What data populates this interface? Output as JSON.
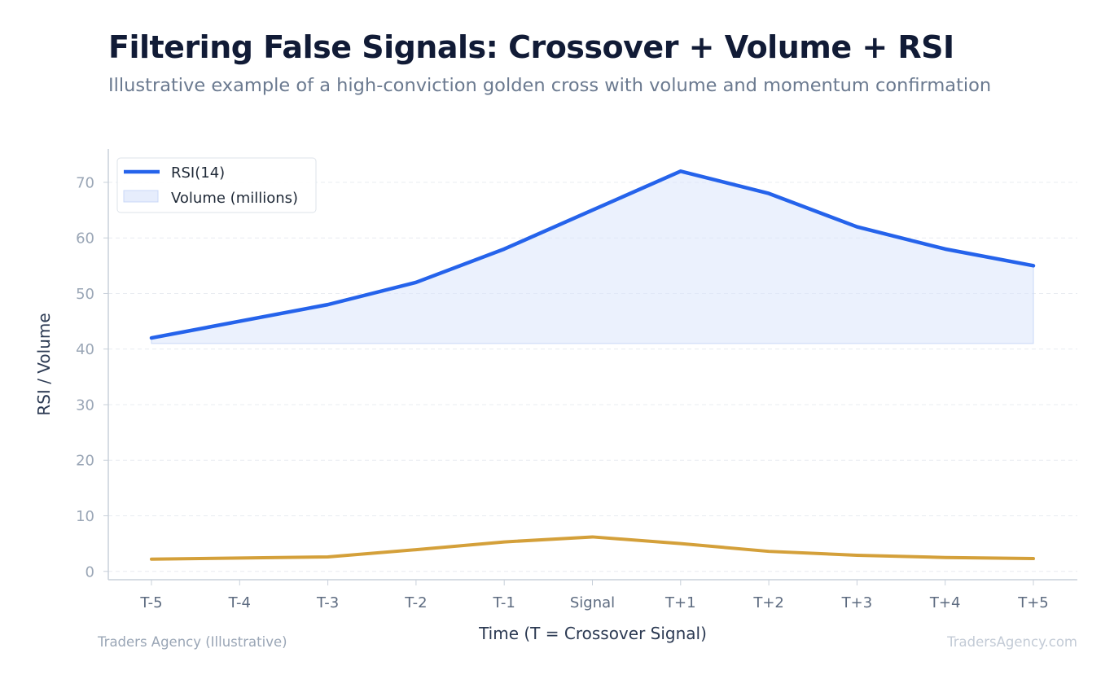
{
  "header": {
    "title": "Filtering False Signals: Crossover + Volume + RSI",
    "subtitle": "Illustrative example of a high-conviction golden cross with volume and momentum confirmation"
  },
  "footer": {
    "source": "Traders Agency (Illustrative)",
    "watermark": "TradersAgency.com"
  },
  "chart_data": {
    "type": "line",
    "title": "Filtering False Signals: Crossover + Volume + RSI",
    "subtitle": "Illustrative example of a high-conviction golden cross with volume and momentum confirmation",
    "xlabel": "Time (T = Crossover Signal)",
    "ylabel": "RSI / Volume",
    "categories": [
      "T-5",
      "T-4",
      "T-3",
      "T-2",
      "T-1",
      "Signal",
      "T+1",
      "T+2",
      "T+3",
      "T+4",
      "T+5"
    ],
    "ylim": [
      -1.5,
      76
    ],
    "yticks": [
      0,
      10,
      20,
      30,
      40,
      50,
      60,
      70
    ],
    "grid": true,
    "legend_position": "top-left",
    "rsi_shade_base": 41,
    "series": [
      {
        "name": "RSI(14)",
        "kind": "line",
        "color": "#2563eb",
        "values": [
          42,
          45,
          48,
          52,
          58,
          65,
          72,
          68,
          62,
          58,
          55
        ]
      },
      {
        "name": "Volume (millions)",
        "kind": "area",
        "color": "#d4a03a",
        "fill": "#dbe6fb",
        "values": [
          2.2,
          2.4,
          2.6,
          3.9,
          5.3,
          6.2,
          5.0,
          3.6,
          2.9,
          2.5,
          2.3
        ]
      }
    ]
  }
}
